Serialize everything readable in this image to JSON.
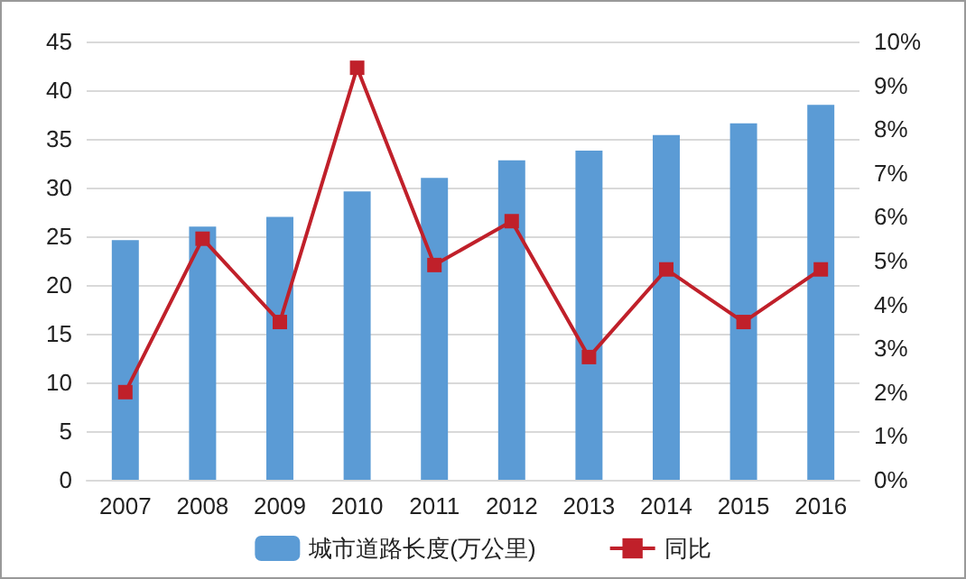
{
  "chart_data": {
    "type": "bar",
    "categories": [
      "2007",
      "2008",
      "2009",
      "2010",
      "2011",
      "2012",
      "2013",
      "2014",
      "2015",
      "2016"
    ],
    "series": [
      {
        "name": "城市道路长度(万公里)",
        "color": "#5b9bd5",
        "values": [
          24.6,
          26,
          27,
          29.6,
          31,
          32.8,
          33.8,
          35.4,
          36.6,
          38.5
        ]
      },
      {
        "name": "同比",
        "type": "line",
        "axis": "y2",
        "color": "#c0202a",
        "marker": "square",
        "values": [
          2.0,
          5.5,
          3.6,
          9.4,
          4.9,
          5.9,
          2.8,
          4.8,
          3.6,
          4.8
        ]
      }
    ],
    "ylim": [
      0,
      45
    ],
    "yticks": [
      0,
      5,
      10,
      15,
      20,
      25,
      30,
      35,
      40,
      45
    ],
    "y2lim": [
      0,
      10
    ],
    "y2ticks": [
      {
        "value": 0,
        "label": "0%"
      },
      {
        "value": 1,
        "label": "1%"
      },
      {
        "value": 2,
        "label": "2%"
      },
      {
        "value": 3,
        "label": "3%"
      },
      {
        "value": 4,
        "label": "4%"
      },
      {
        "value": 5,
        "label": "5%"
      },
      {
        "value": 6,
        "label": "6%"
      },
      {
        "value": 7,
        "label": "7%"
      },
      {
        "value": 8,
        "label": "8%"
      },
      {
        "value": 9,
        "label": "9%"
      },
      {
        "value": 10,
        "label": "10%"
      }
    ],
    "grid": "y",
    "legend": "bottom"
  }
}
